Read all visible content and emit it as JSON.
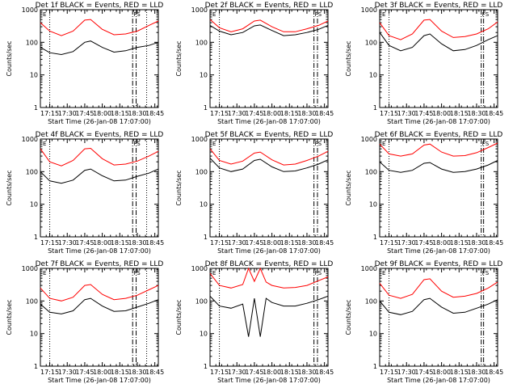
{
  "figure": {
    "colors": {
      "events": "#000000",
      "lld": "#ff0000"
    },
    "chart_data": [
      {
        "type": "line",
        "title": "Det 1f BLACK = Events, RED = LLD",
        "xlabel": "Start Time (26-Jan-08 17:07:00)",
        "ylabel": "Counts/sec",
        "yscale": "log",
        "ylim": [
          1,
          1000
        ],
        "xlim": [
          "17:07",
          "18:48"
        ],
        "x_tick_labels": [
          "17:15",
          "17:30",
          "17:45",
          "18:00",
          "18:15",
          "18:30",
          "18:45"
        ],
        "y_tick_labels": [
          "1",
          "10",
          "100",
          "1000"
        ],
        "markers": {
          "dotted": [
            "17:15",
            "18:38"
          ],
          "dashdot": [
            "18:26",
            "18:29"
          ]
        },
        "corner_labels": [
          "E",
          "F",
          "S"
        ],
        "series": [
          {
            "name": "BLACK",
            "x": [
              "17:07",
              "17:15",
              "17:25",
              "17:35",
              "17:45",
              "17:50",
              "18:00",
              "18:10",
              "18:20",
              "18:30",
              "18:40",
              "18:48"
            ],
            "y": [
              70,
              48,
              42,
              52,
              100,
              110,
              70,
              50,
              55,
              70,
              80,
              100
            ]
          },
          {
            "name": "RED",
            "x": [
              "17:07",
              "17:15",
              "17:25",
              "17:35",
              "17:45",
              "17:50",
              "18:00",
              "18:10",
              "18:20",
              "18:30",
              "18:40",
              "18:48"
            ],
            "y": [
              400,
              220,
              160,
              220,
              480,
              500,
              250,
              170,
              180,
              220,
              330,
              450
            ]
          }
        ]
      },
      {
        "type": "line",
        "title": "Det 2f BLACK = Events, RED = LLD",
        "xlabel": "Start Time (26-Jan-08 17:07:00)",
        "ylabel": "Counts/sec",
        "yscale": "log",
        "ylim": [
          1,
          1000
        ],
        "xlim": [
          "17:07",
          "18:48"
        ],
        "x_tick_labels": [
          "17:15",
          "17:30",
          "17:45",
          "18:00",
          "18:15",
          "18:30",
          "18:45"
        ],
        "y_tick_labels": [
          "1",
          "10",
          "100",
          "1000"
        ],
        "markers": {
          "dotted": [
            "17:15"
          ],
          "dashdot": [
            "18:36",
            "18:39"
          ]
        },
        "corner_labels": [
          "E",
          "F",
          "S"
        ],
        "series": [
          {
            "name": "BLACK",
            "x": [
              "17:07",
              "17:15",
              "17:25",
              "17:35",
              "17:45",
              "17:50",
              "18:00",
              "18:10",
              "18:20",
              "18:30",
              "18:40",
              "18:48"
            ],
            "y": [
              330,
              220,
              170,
              200,
              320,
              340,
              230,
              160,
              170,
              200,
              250,
              330
            ]
          },
          {
            "name": "RED",
            "x": [
              "17:07",
              "17:15",
              "17:25",
              "17:35",
              "17:45",
              "17:50",
              "18:00",
              "18:10",
              "18:20",
              "18:30",
              "18:40",
              "18:48"
            ],
            "y": [
              500,
              280,
              210,
              260,
              450,
              480,
              300,
              210,
              210,
              260,
              330,
              450
            ]
          }
        ]
      },
      {
        "type": "line",
        "title": "Det 3f BLACK = Events, RED = LLD",
        "xlabel": "Start Time (26-Jan-08 17:07:00)",
        "ylabel": "Counts/sec",
        "yscale": "log",
        "ylim": [
          1,
          1000
        ],
        "xlim": [
          "17:07",
          "18:48"
        ],
        "x_tick_labels": [
          "17:15",
          "17:30",
          "17:45",
          "18:00",
          "18:15",
          "18:30",
          "18:45"
        ],
        "y_tick_labels": [
          "1",
          "10",
          "100",
          "1000"
        ],
        "markers": {
          "dotted": [
            "17:15"
          ],
          "dashdot": [
            "18:34",
            "18:36"
          ]
        },
        "corner_labels": [
          "E",
          "F",
          "S"
        ],
        "series": [
          {
            "name": "BLACK",
            "x": [
              "17:07",
              "17:15",
              "17:25",
              "17:35",
              "17:45",
              "17:50",
              "18:00",
              "18:10",
              "18:20",
              "18:30",
              "18:40",
              "18:48"
            ],
            "y": [
              200,
              80,
              55,
              70,
              160,
              180,
              90,
              55,
              60,
              80,
              120,
              160
            ]
          },
          {
            "name": "RED",
            "x": [
              "17:07",
              "17:15",
              "17:25",
              "17:35",
              "17:45",
              "17:50",
              "18:00",
              "18:10",
              "18:20",
              "18:30",
              "18:40",
              "18:48"
            ],
            "y": [
              400,
              160,
              120,
              180,
              480,
              500,
              220,
              140,
              150,
              180,
              260,
              420
            ]
          }
        ]
      },
      {
        "type": "line",
        "title": "Det 4f BLACK = Events, RED = LLD",
        "xlabel": "Start Time (26-Jan-08 17:07:00)",
        "ylabel": "Counts/sec",
        "yscale": "log",
        "ylim": [
          1,
          1000
        ],
        "xlim": [
          "17:07",
          "18:48"
        ],
        "x_tick_labels": [
          "17:15",
          "17:30",
          "17:45",
          "18:00",
          "18:15",
          "18:30",
          "18:45"
        ],
        "y_tick_labels": [
          "1",
          "10",
          "100",
          "1000"
        ],
        "markers": {
          "dotted": [
            "17:15",
            "18:38"
          ],
          "dashdot": [
            "18:26",
            "18:29"
          ]
        },
        "corner_labels": [
          "E",
          "F",
          "S"
        ],
        "series": [
          {
            "name": "BLACK",
            "x": [
              "17:07",
              "17:15",
              "17:25",
              "17:35",
              "17:45",
              "17:50",
              "18:00",
              "18:10",
              "18:20",
              "18:30",
              "18:40",
              "18:48"
            ],
            "y": [
              100,
              52,
              44,
              55,
              110,
              120,
              75,
              52,
              55,
              72,
              90,
              120
            ]
          },
          {
            "name": "RED",
            "x": [
              "17:07",
              "17:15",
              "17:25",
              "17:35",
              "17:45",
              "17:50",
              "18:00",
              "18:10",
              "18:20",
              "18:30",
              "18:40",
              "18:48"
            ],
            "y": [
              500,
              200,
              150,
              220,
              500,
              520,
              250,
              160,
              170,
              210,
              300,
              420
            ]
          }
        ]
      },
      {
        "type": "line",
        "title": "Det 5f BLACK = Events, RED = LLD",
        "xlabel": "Start Time (26-Jan-08 17:07:00)",
        "ylabel": "Counts/sec",
        "yscale": "log",
        "ylim": [
          1,
          1000
        ],
        "xlim": [
          "17:07",
          "18:48"
        ],
        "x_tick_labels": [
          "17:15",
          "17:30",
          "17:45",
          "18:00",
          "18:15",
          "18:30",
          "18:45"
        ],
        "y_tick_labels": [
          "1",
          "10",
          "100",
          "1000"
        ],
        "markers": {
          "dotted": [
            "17:15"
          ],
          "dashdot": [
            "18:36",
            "18:39"
          ]
        },
        "corner_labels": [
          "E",
          "F",
          "S"
        ],
        "series": [
          {
            "name": "BLACK",
            "x": [
              "17:07",
              "17:15",
              "17:25",
              "17:35",
              "17:45",
              "17:50",
              "18:00",
              "18:10",
              "18:20",
              "18:30",
              "18:40",
              "18:48"
            ],
            "y": [
              260,
              130,
              100,
              120,
              220,
              240,
              140,
              100,
              105,
              130,
              170,
              230
            ]
          },
          {
            "name": "RED",
            "x": [
              "17:07",
              "17:15",
              "17:25",
              "17:35",
              "17:45",
              "17:50",
              "18:00",
              "18:10",
              "18:20",
              "18:30",
              "18:40",
              "18:48"
            ],
            "y": [
              500,
              220,
              170,
              210,
              370,
              400,
              230,
              160,
              170,
              220,
              300,
              420
            ]
          }
        ]
      },
      {
        "type": "line",
        "title": "Det 6f BLACK = Events, RED = LLD",
        "xlabel": "Start Time (26-Jan-08 17:07:00)",
        "ylabel": "Counts/sec",
        "yscale": "log",
        "ylim": [
          1,
          1000
        ],
        "xlim": [
          "17:07",
          "18:48"
        ],
        "x_tick_labels": [
          "17:15",
          "17:30",
          "17:45",
          "18:00",
          "18:15",
          "18:30",
          "18:45"
        ],
        "y_tick_labels": [
          "1",
          "10",
          "100",
          "1000"
        ],
        "markers": {
          "dotted": [
            "17:15"
          ],
          "dashdot": [
            "18:34",
            "18:36"
          ]
        },
        "corner_labels": [
          "E",
          "F",
          "S"
        ],
        "series": [
          {
            "name": "BLACK",
            "x": [
              "17:07",
              "17:15",
              "17:25",
              "17:35",
              "17:45",
              "17:50",
              "18:00",
              "18:10",
              "18:20",
              "18:30",
              "18:40",
              "18:48"
            ],
            "y": [
              200,
              110,
              95,
              110,
              180,
              190,
              120,
              95,
              100,
              120,
              160,
              220
            ]
          },
          {
            "name": "RED",
            "x": [
              "17:07",
              "17:15",
              "17:25",
              "17:35",
              "17:45",
              "17:50",
              "18:00",
              "18:10",
              "18:20",
              "18:30",
              "18:40",
              "18:48"
            ],
            "y": [
              700,
              350,
              300,
              350,
              650,
              700,
              400,
              300,
              310,
              380,
              550,
              750
            ]
          }
        ]
      },
      {
        "type": "line",
        "title": "Det 7f BLACK = Events, RED = LLD",
        "xlabel": "Start Time (26-Jan-08 17:07:00)",
        "ylabel": "Counts/sec",
        "yscale": "log",
        "ylim": [
          1,
          1000
        ],
        "xlim": [
          "17:07",
          "18:48"
        ],
        "x_tick_labels": [
          "17:15",
          "17:30",
          "17:45",
          "18:00",
          "18:15",
          "18:30",
          "18:45"
        ],
        "y_tick_labels": [
          "1",
          "10",
          "100",
          "1000"
        ],
        "markers": {
          "dotted": [
            "17:15",
            "18:38"
          ],
          "dashdot": [
            "18:26",
            "18:29"
          ]
        },
        "corner_labels": [
          "E",
          "F",
          "S"
        ],
        "series": [
          {
            "name": "BLACK",
            "x": [
              "17:07",
              "17:15",
              "17:25",
              "17:35",
              "17:45",
              "17:50",
              "18:00",
              "18:10",
              "18:20",
              "18:30",
              "18:40",
              "18:48"
            ],
            "y": [
              80,
              45,
              40,
              50,
              110,
              120,
              70,
              48,
              50,
              65,
              85,
              110
            ]
          },
          {
            "name": "RED",
            "x": [
              "17:07",
              "17:15",
              "17:25",
              "17:35",
              "17:45",
              "17:50",
              "18:00",
              "18:10",
              "18:20",
              "18:30",
              "18:40",
              "18:48"
            ],
            "y": [
              250,
              120,
              100,
              130,
              300,
              320,
              160,
              110,
              120,
              150,
              220,
              300
            ]
          }
        ]
      },
      {
        "type": "line",
        "title": "Det 8f BLACK = Events, RED = LLD",
        "xlabel": "Start Time (26-Jan-08 17:07:00)",
        "ylabel": "Counts/sec",
        "yscale": "log",
        "ylim": [
          1,
          1000
        ],
        "xlim": [
          "17:07",
          "18:48"
        ],
        "x_tick_labels": [
          "17:15",
          "17:30",
          "17:45",
          "18:00",
          "18:15",
          "18:30",
          "18:45"
        ],
        "y_tick_labels": [
          "1",
          "10",
          "100",
          "1000"
        ],
        "markers": {
          "dotted": [
            "17:15"
          ],
          "dashdot": [
            "18:36",
            "18:39"
          ]
        },
        "corner_labels": [
          "E",
          "F",
          "S"
        ],
        "series": [
          {
            "name": "BLACK",
            "x": [
              "17:07",
              "17:15",
              "17:25",
              "17:35",
              "17:40",
              "17:45",
              "17:50",
              "17:55",
              "18:00",
              "18:10",
              "18:20",
              "18:30",
              "18:40",
              "18:48"
            ],
            "y": [
              140,
              70,
              60,
              80,
              8,
              120,
              8,
              120,
              90,
              70,
              70,
              85,
              110,
              140
            ]
          },
          {
            "name": "RED",
            "x": [
              "17:07",
              "17:15",
              "17:25",
              "17:35",
              "17:40",
              "17:45",
              "17:50",
              "17:55",
              "18:00",
              "18:10",
              "18:20",
              "18:30",
              "18:40",
              "18:48"
            ],
            "y": [
              700,
              300,
              250,
              320,
              1000,
              400,
              1000,
              380,
              300,
              250,
              260,
              300,
              420,
              550
            ]
          }
        ]
      },
      {
        "type": "line",
        "title": "Det 9f BLACK = Events, RED = LLD",
        "xlabel": "Start Time (26-Jan-08 17:07:00)",
        "ylabel": "Counts/sec",
        "yscale": "log",
        "ylim": [
          1,
          1000
        ],
        "xlim": [
          "17:07",
          "18:48"
        ],
        "x_tick_labels": [
          "17:15",
          "17:30",
          "17:45",
          "18:00",
          "18:15",
          "18:30",
          "18:45"
        ],
        "y_tick_labels": [
          "1",
          "10",
          "100",
          "1000"
        ],
        "markers": {
          "dotted": [
            "17:15"
          ],
          "dashdot": [
            "18:34",
            "18:36"
          ]
        },
        "corner_labels": [
          "E",
          "F",
          "S"
        ],
        "series": [
          {
            "name": "BLACK",
            "x": [
              "17:07",
              "17:15",
              "17:25",
              "17:35",
              "17:45",
              "17:50",
              "18:00",
              "18:10",
              "18:20",
              "18:30",
              "18:40",
              "18:48"
            ],
            "y": [
              100,
              45,
              38,
              48,
              110,
              120,
              65,
              42,
              45,
              60,
              80,
              110
            ]
          },
          {
            "name": "RED",
            "x": [
              "17:07",
              "17:15",
              "17:25",
              "17:35",
              "17:45",
              "17:50",
              "18:00",
              "18:10",
              "18:20",
              "18:30",
              "18:40",
              "18:48"
            ],
            "y": [
              350,
              150,
              120,
              160,
              450,
              480,
              200,
              130,
              140,
              170,
              250,
              380
            ]
          }
        ]
      }
    ]
  }
}
